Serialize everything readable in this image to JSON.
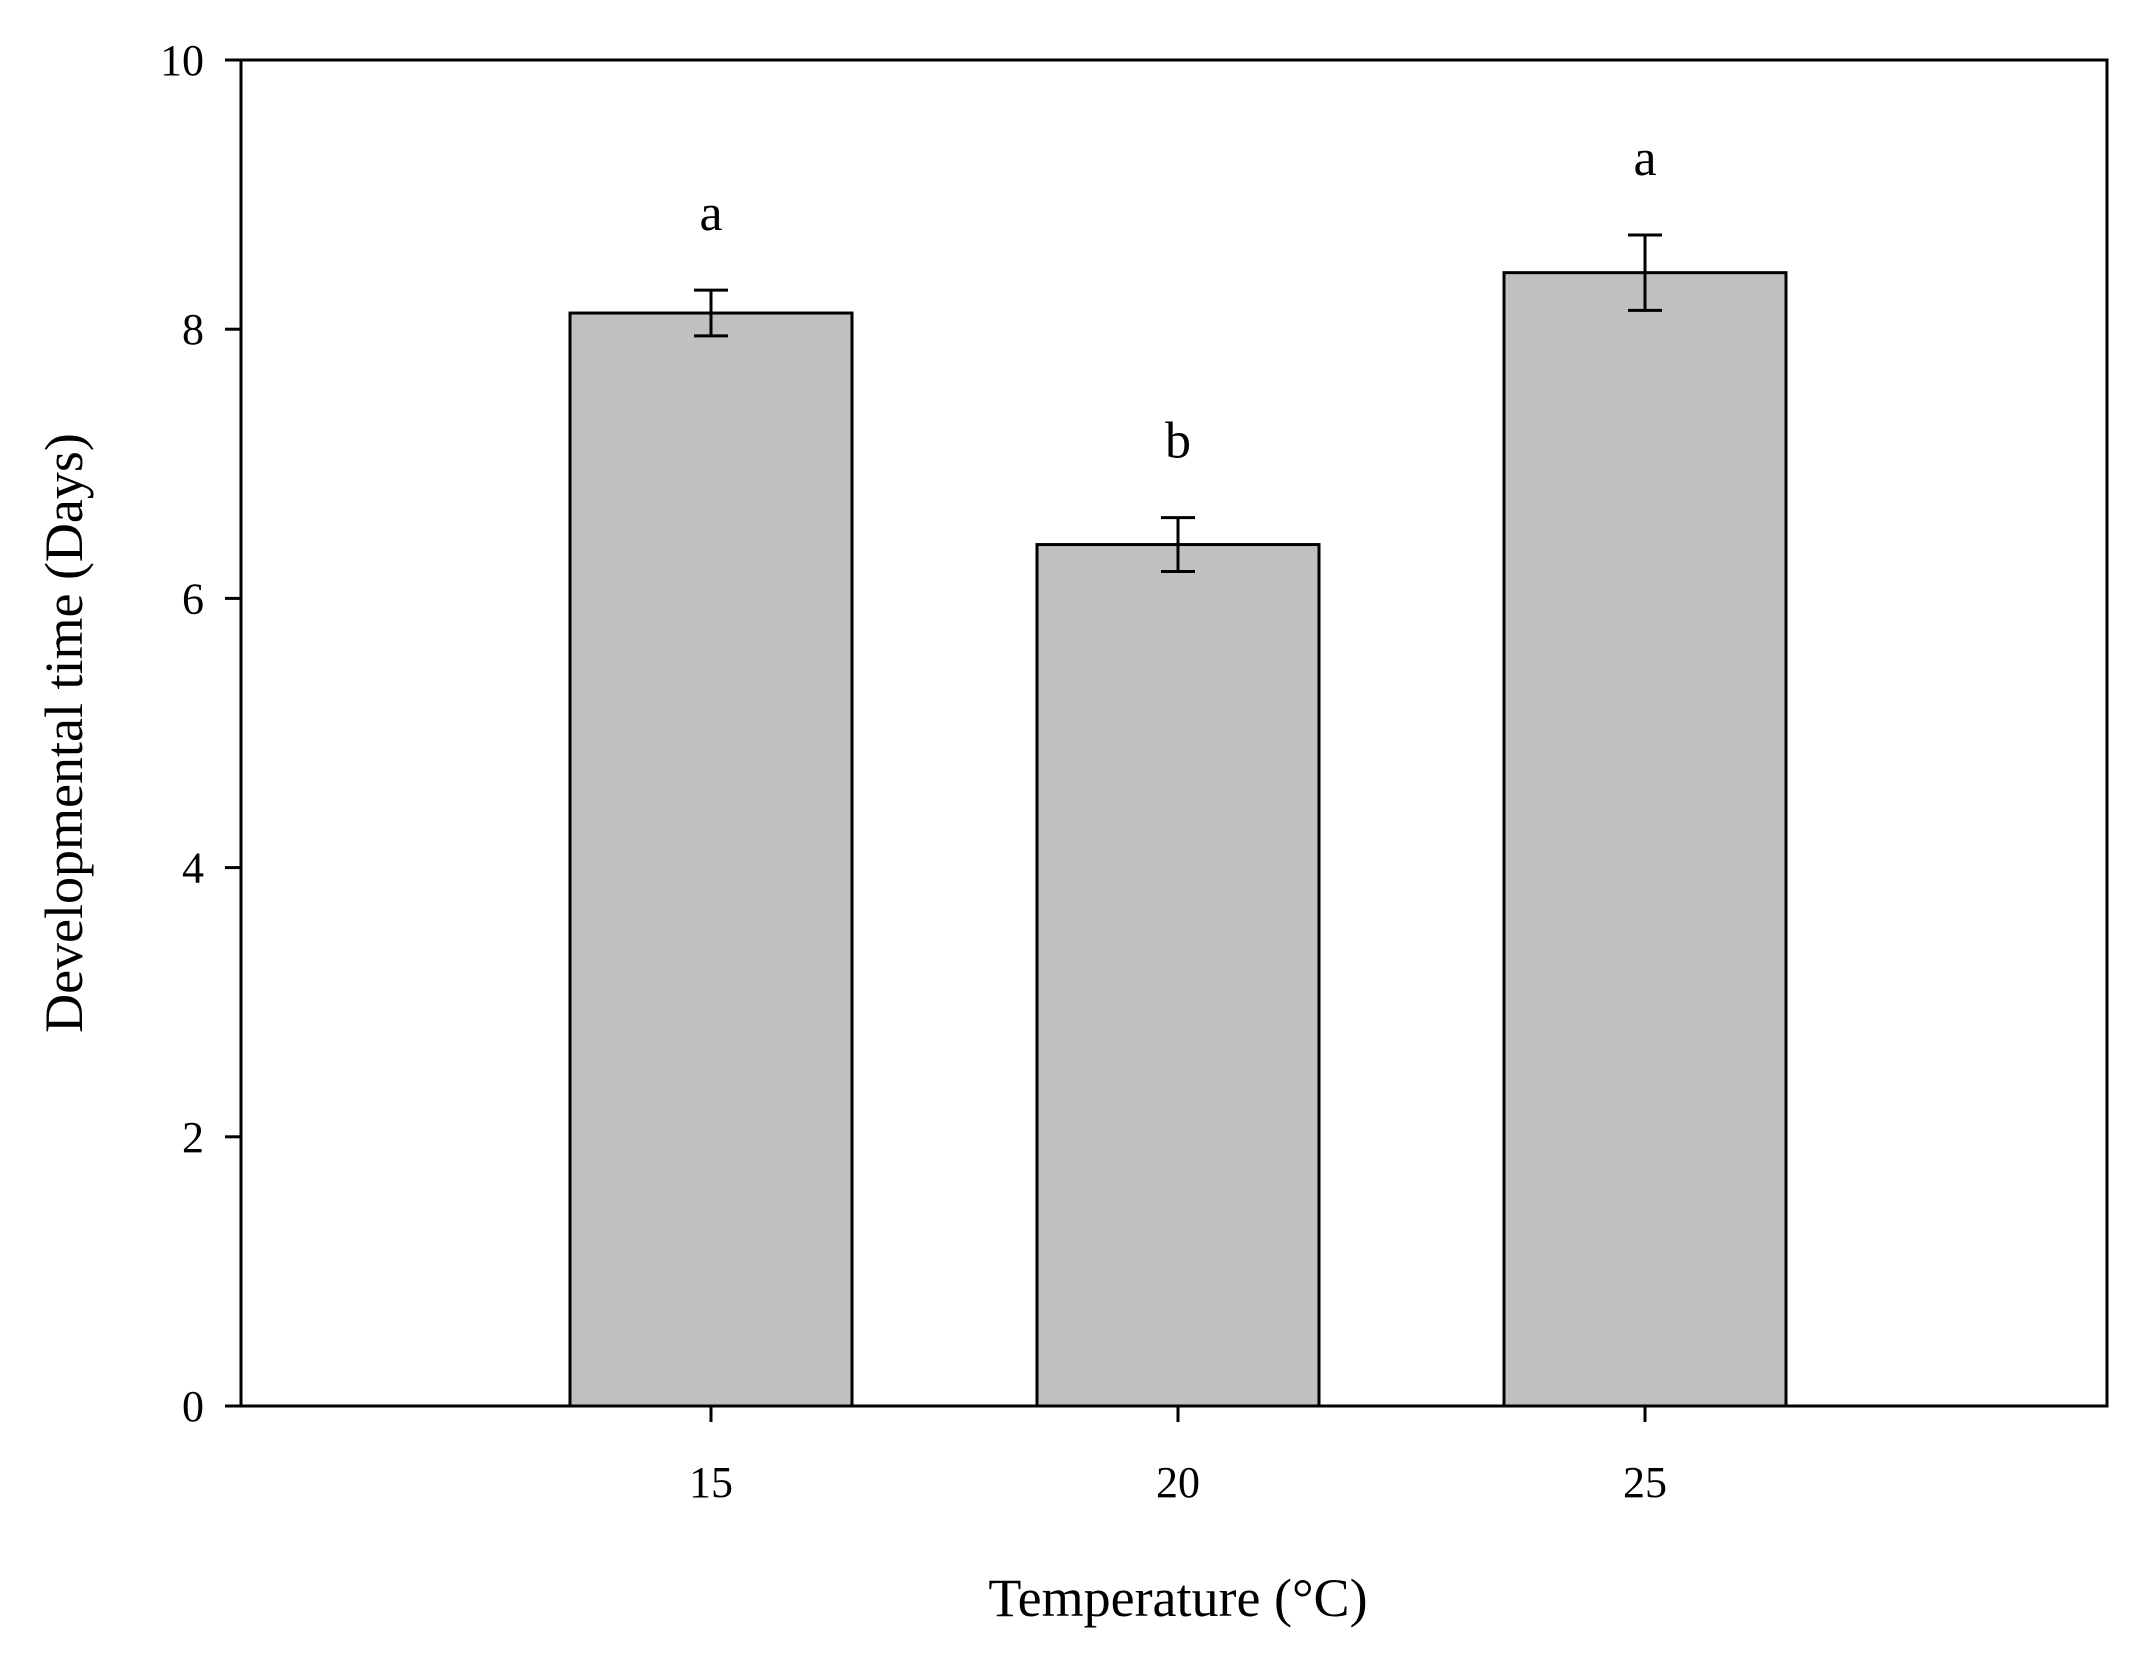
{
  "chart_data": {
    "type": "bar",
    "title": "",
    "xlabel": "Temperature (°C)",
    "ylabel": "Developmental time (Days)",
    "categories": [
      "15",
      "20",
      "25"
    ],
    "values": [
      8.12,
      6.4,
      8.42
    ],
    "error": [
      0.17,
      0.2,
      0.28
    ],
    "significance": [
      "a",
      "b",
      "a"
    ],
    "ylim": [
      0,
      10
    ],
    "yticks": [
      0,
      2,
      4,
      6,
      8,
      10
    ],
    "grid": false,
    "legend": "none",
    "bar_color": "#c0c0c0",
    "edge_color": "#000000"
  }
}
